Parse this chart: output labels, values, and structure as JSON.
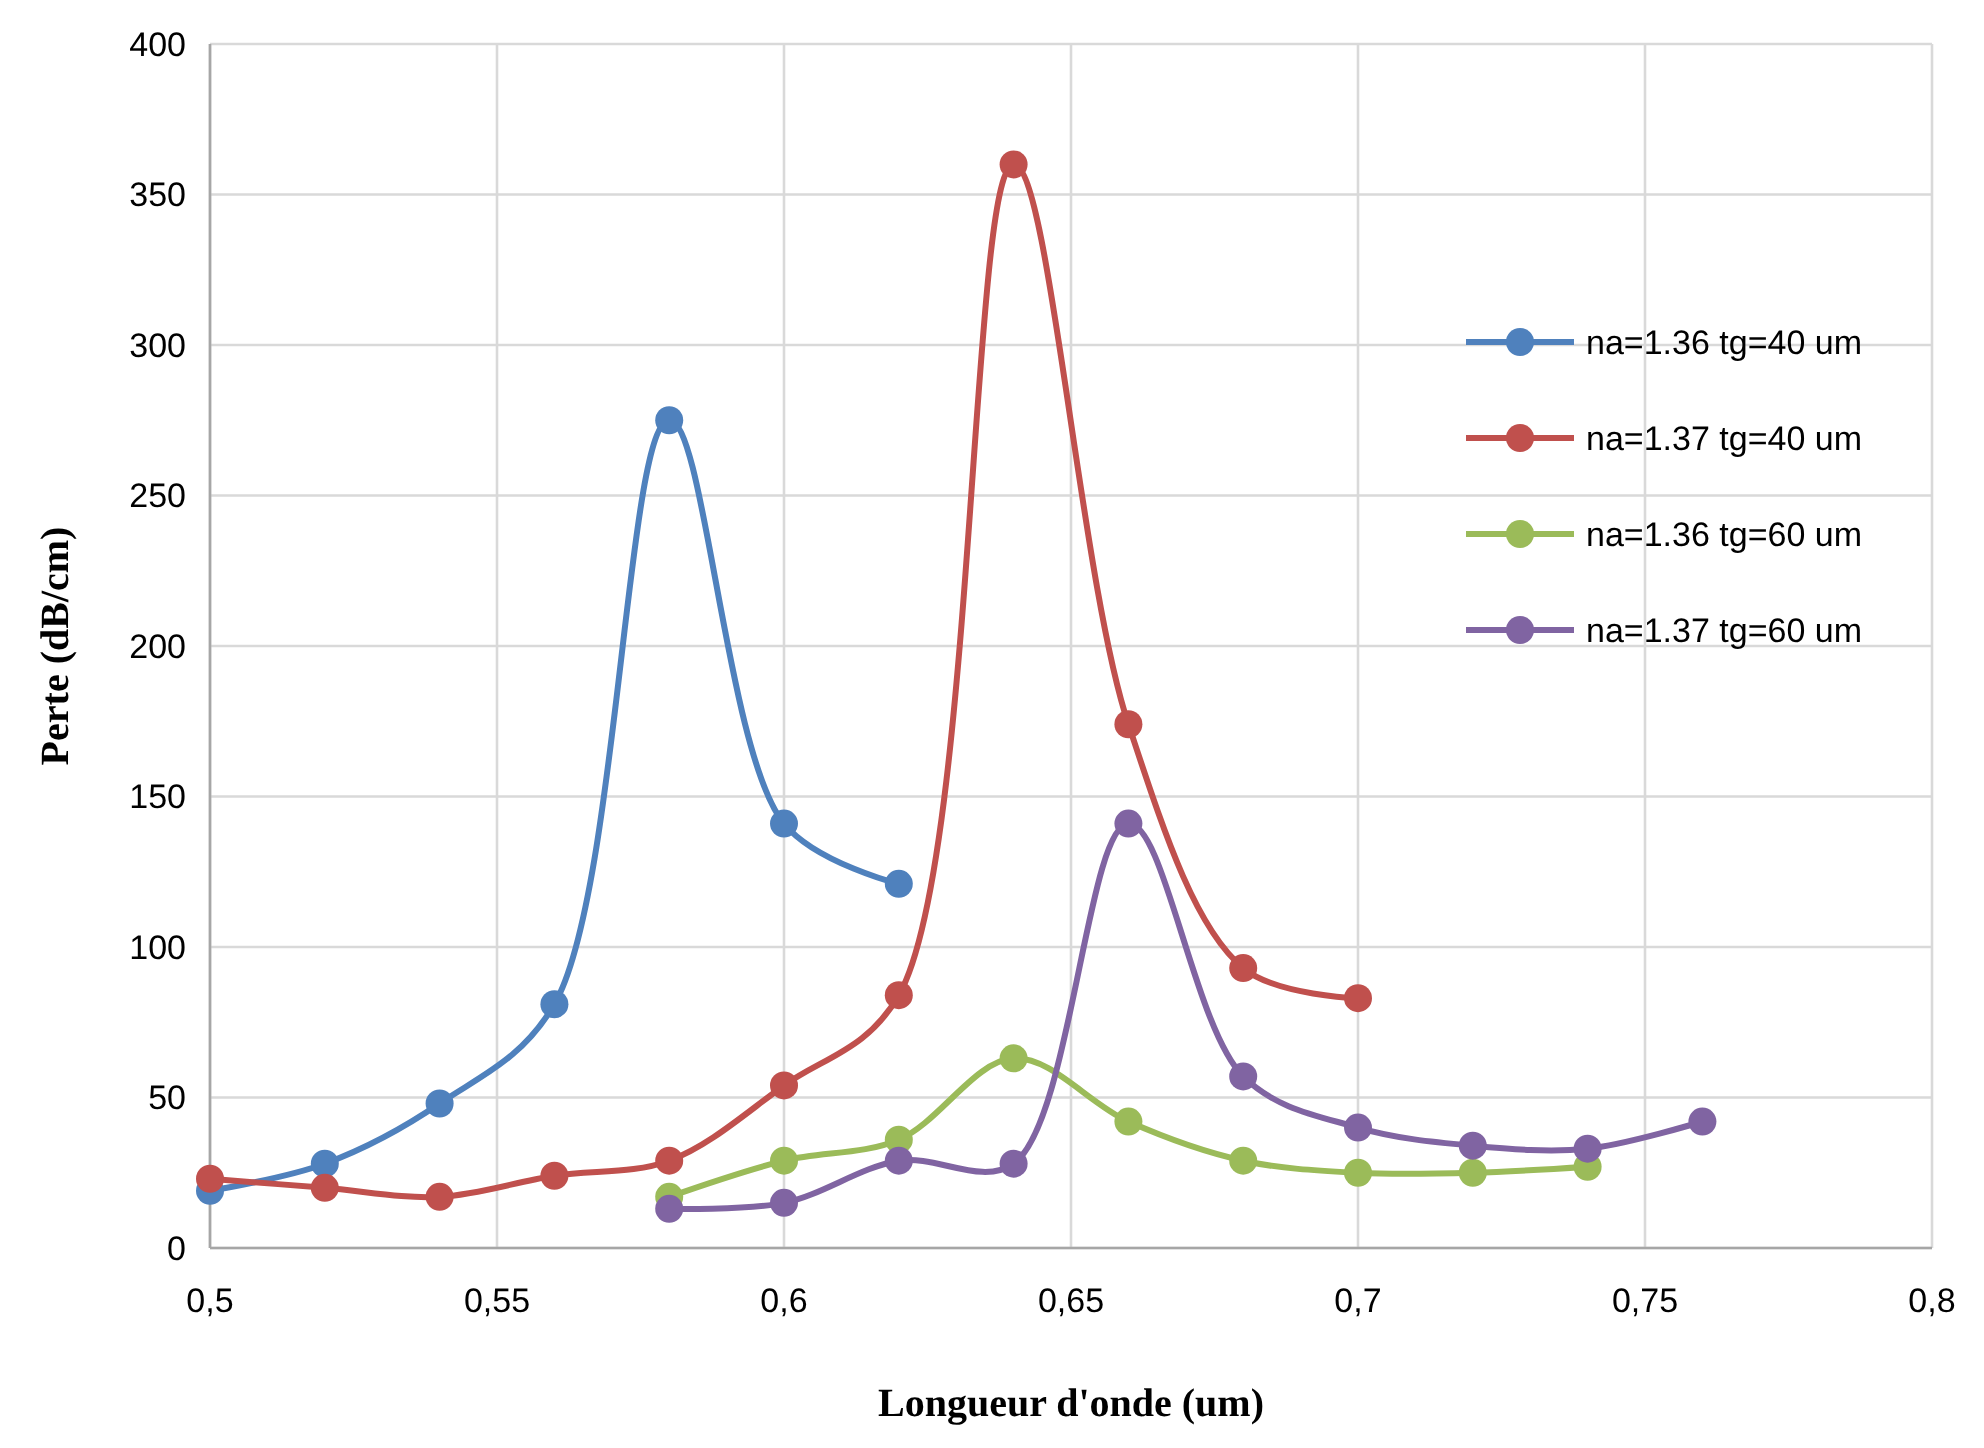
{
  "chart_data": {
    "type": "line",
    "xlabel": "Longueur d'onde (um)",
    "ylabel": "Perte (dB/cm)",
    "xlim": [
      0.5,
      0.8
    ],
    "xticks": [
      {
        "value": 0.5,
        "label": "0,5"
      },
      {
        "value": 0.55,
        "label": "0,55"
      },
      {
        "value": 0.6,
        "label": "0,6"
      },
      {
        "value": 0.65,
        "label": "0,65"
      },
      {
        "value": 0.7,
        "label": "0,7"
      },
      {
        "value": 0.75,
        "label": "0,75"
      },
      {
        "value": 0.8,
        "label": "0,8"
      }
    ],
    "ylim": [
      0,
      400
    ],
    "yticks": [
      0,
      50,
      100,
      150,
      200,
      250,
      300,
      350,
      400
    ],
    "grid": true,
    "legend": "right",
    "marker": "circle",
    "line_style": "solid",
    "series": [
      {
        "name": "na=1.36 tg=40 um",
        "color": "#4f81bd",
        "x": [
          0.5,
          0.52,
          0.54,
          0.56,
          0.58,
          0.6,
          0.62
        ],
        "values": [
          19,
          28,
          48,
          81,
          275,
          141,
          121
        ]
      },
      {
        "name": "na=1.37 tg=40 um",
        "color": "#c0504d",
        "x": [
          0.5,
          0.52,
          0.54,
          0.56,
          0.58,
          0.6,
          0.62,
          0.64,
          0.66,
          0.68,
          0.7
        ],
        "values": [
          23,
          20,
          17,
          24,
          29,
          54,
          84,
          360,
          174,
          93,
          83
        ]
      },
      {
        "name": "na=1.36 tg=60 um",
        "color": "#9bbb59",
        "x": [
          0.58,
          0.6,
          0.62,
          0.64,
          0.66,
          0.68,
          0.7,
          0.72,
          0.74
        ],
        "values": [
          17,
          29,
          36,
          63,
          42,
          29,
          25,
          25,
          27
        ]
      },
      {
        "name": "na=1.37 tg=60 um",
        "color": "#8064a2",
        "x": [
          0.58,
          0.6,
          0.62,
          0.64,
          0.66,
          0.68,
          0.7,
          0.72,
          0.74,
          0.76
        ],
        "values": [
          13,
          15,
          29,
          28,
          141,
          57,
          40,
          34,
          33,
          42
        ]
      }
    ]
  }
}
